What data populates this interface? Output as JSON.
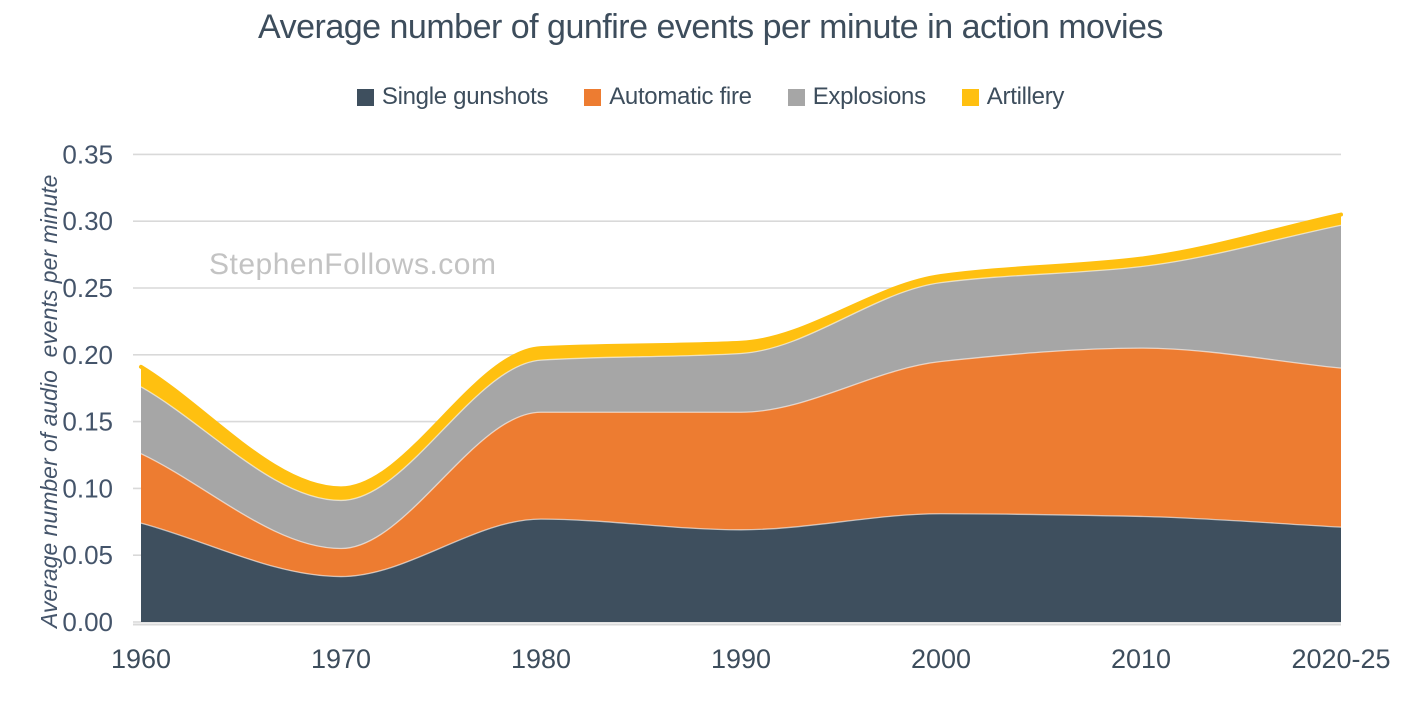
{
  "page": {
    "watermark": "StephenFollows.com"
  },
  "chart_data": {
    "type": "area",
    "stacked": true,
    "smoothed": true,
    "title": "Average number of gunfire events per minute in action movies",
    "xlabel": "",
    "ylabel": "Average number of audio  events per minute",
    "categories": [
      "1960",
      "1970",
      "1980",
      "1990",
      "2000",
      "2010",
      "2020-25"
    ],
    "series": [
      {
        "name": "Single gunshots",
        "color": "#3e4f5e",
        "values": [
          0.074,
          0.034,
          0.077,
          0.069,
          0.081,
          0.079,
          0.071
        ]
      },
      {
        "name": "Automatic fire",
        "color": "#ed7c31",
        "values": [
          0.052,
          0.021,
          0.08,
          0.088,
          0.114,
          0.126,
          0.119
        ]
      },
      {
        "name": "Explosions",
        "color": "#a6a6a6",
        "values": [
          0.05,
          0.036,
          0.039,
          0.044,
          0.059,
          0.061,
          0.107
        ]
      },
      {
        "name": "Artillery",
        "color": "#ffc010",
        "values": [
          0.015,
          0.009,
          0.009,
          0.008,
          0.005,
          0.006,
          0.008
        ]
      }
    ],
    "cumulative_tops": {
      "note": "stacked totals read from gridlines",
      "Single gunshots": [
        0.074,
        0.034,
        0.077,
        0.069,
        0.081,
        0.079,
        0.071
      ],
      "Automatic fire": [
        0.126,
        0.055,
        0.157,
        0.157,
        0.195,
        0.205,
        0.19
      ],
      "Explosions": [
        0.176,
        0.091,
        0.196,
        0.201,
        0.254,
        0.266,
        0.297
      ],
      "Artillery": [
        0.191,
        0.1,
        0.205,
        0.209,
        0.259,
        0.272,
        0.305
      ]
    },
    "ylim": [
      0,
      0.35
    ],
    "ytick_labels": [
      "0.00",
      "0.05",
      "0.10",
      "0.15",
      "0.20",
      "0.25",
      "0.30",
      "0.35"
    ],
    "grid": true,
    "legend_position": "top",
    "colors": {
      "grid": "#d9d9d9",
      "text": "#3d4d5c",
      "axis_text": "#44546a",
      "watermark": "#c3c3c3",
      "background": "#ffffff"
    }
  }
}
